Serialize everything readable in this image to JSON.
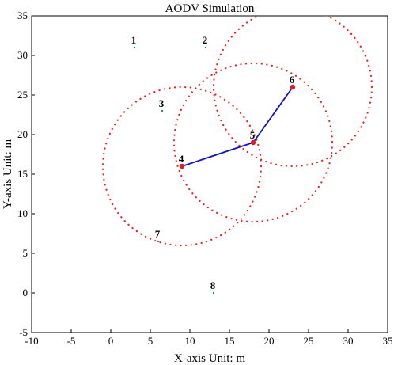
{
  "chart_data": {
    "type": "scatter",
    "title": "AODV Simulation",
    "xlabel": "X-axis Unit: m",
    "ylabel": "Y-axis Unit: m",
    "xlim": [
      -10,
      35
    ],
    "ylim": [
      -5,
      35
    ],
    "xticks": [
      -10,
      -5,
      0,
      5,
      10,
      15,
      20,
      25,
      30,
      35
    ],
    "yticks": [
      -5,
      0,
      5,
      10,
      15,
      20,
      25,
      30,
      35
    ],
    "grid": false,
    "nodes": [
      {
        "label": "1",
        "x": 3,
        "y": 31,
        "active": false
      },
      {
        "label": "2",
        "x": 12,
        "y": 31,
        "active": false
      },
      {
        "label": "3",
        "x": 6.5,
        "y": 23,
        "active": false
      },
      {
        "label": "4",
        "x": 9,
        "y": 16,
        "active": true
      },
      {
        "label": "5",
        "x": 18,
        "y": 19,
        "active": true
      },
      {
        "label": "6",
        "x": 23,
        "y": 26,
        "active": true
      },
      {
        "label": "7",
        "x": 6,
        "y": 6.5,
        "active": false
      },
      {
        "label": "8",
        "x": 13,
        "y": 0,
        "active": false
      }
    ],
    "route": [
      {
        "x": 9,
        "y": 16
      },
      {
        "x": 18,
        "y": 19
      },
      {
        "x": 23,
        "y": 26
      }
    ],
    "ranges": [
      {
        "node": "4",
        "cx": 9,
        "cy": 16,
        "r": 10
      },
      {
        "node": "5",
        "cx": 18,
        "cy": 19,
        "r": 10
      },
      {
        "node": "6",
        "cx": 23,
        "cy": 26,
        "r": 10
      }
    ],
    "colors": {
      "route": "#1010cc",
      "range": "#ee2222",
      "active_node": "#dd1a2a",
      "idle_node": "#1a8a7a"
    }
  }
}
